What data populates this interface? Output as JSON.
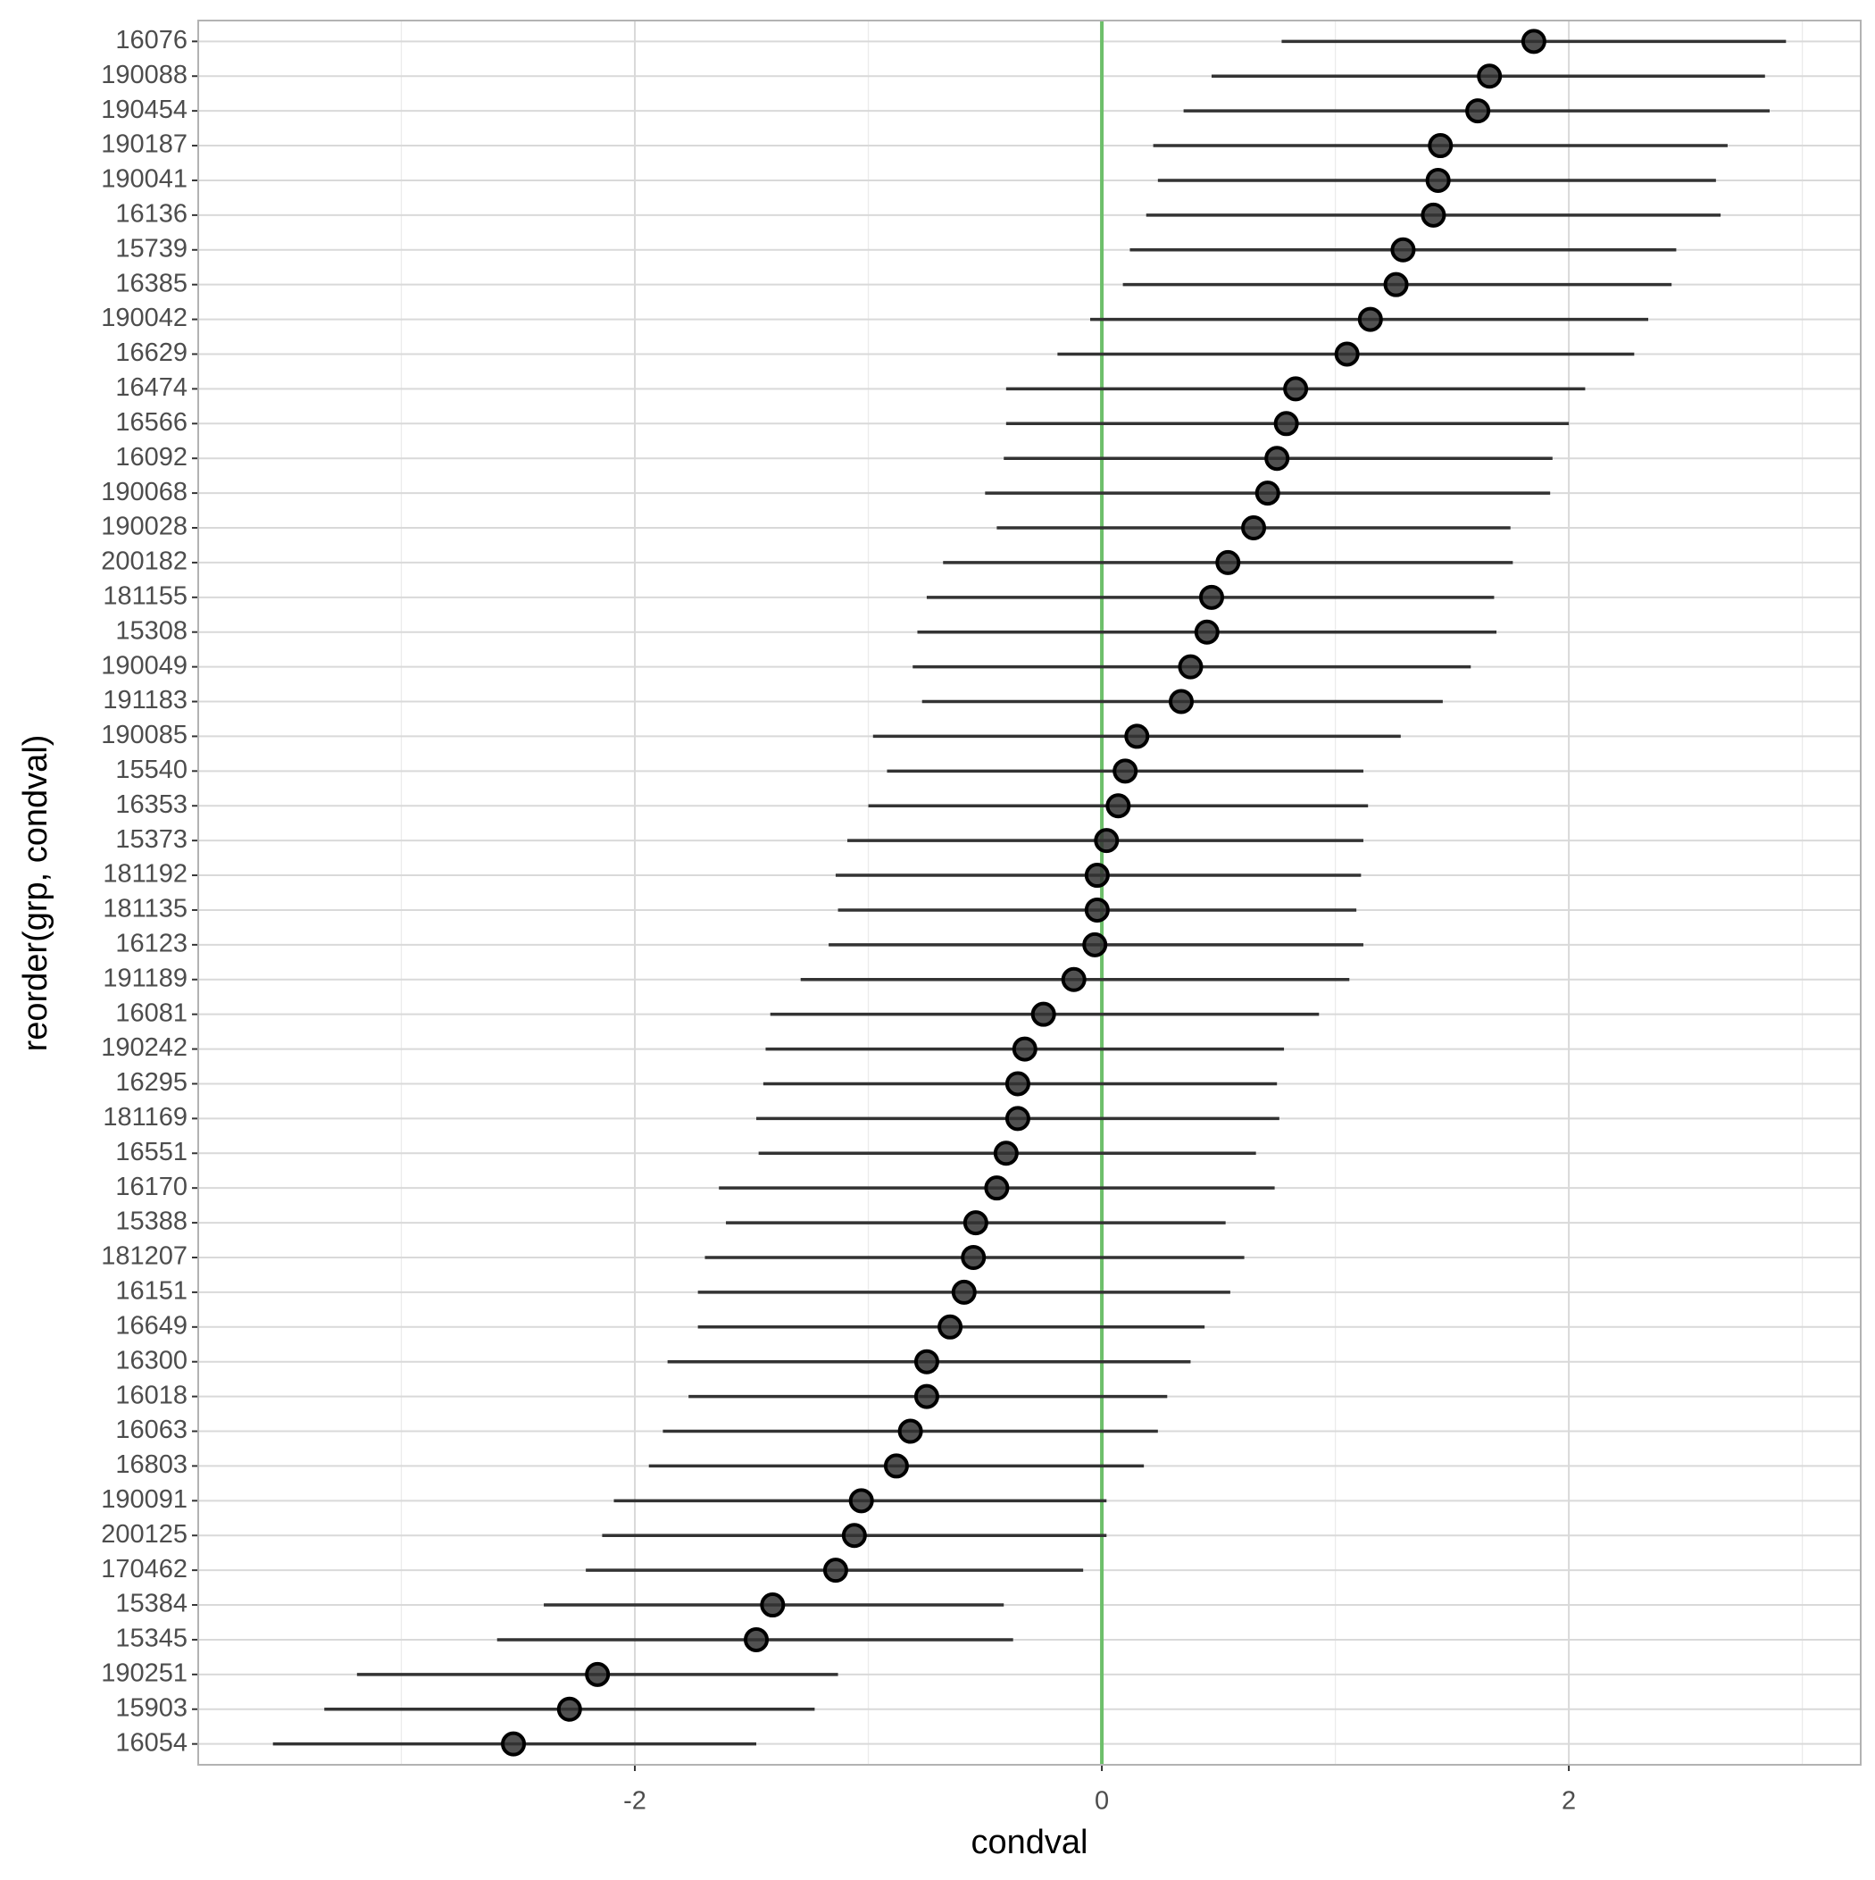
{
  "chart_data": {
    "type": "pointrange",
    "x_label": "condval",
    "y_label": "reorder(grp, condval)",
    "categories": [
      "16076",
      "190088",
      "190454",
      "190187",
      "190041",
      "16136",
      "15739",
      "16385",
      "190042",
      "16629",
      "16474",
      "16566",
      "16092",
      "190068",
      "190028",
      "200182",
      "181155",
      "15308",
      "190049",
      "191183",
      "190085",
      "15540",
      "16353",
      "15373",
      "181192",
      "181135",
      "16123",
      "191189",
      "16081",
      "190242",
      "16295",
      "181169",
      "16551",
      "16170",
      "15388",
      "181207",
      "16151",
      "16649",
      "16300",
      "16018",
      "16063",
      "16803",
      "190091",
      "200125",
      "170462",
      "15384",
      "15345",
      "190251",
      "15903",
      "16054"
    ],
    "values": [
      1.85,
      1.66,
      1.61,
      1.45,
      1.44,
      1.42,
      1.29,
      1.26,
      1.15,
      1.05,
      0.83,
      0.79,
      0.75,
      0.71,
      0.65,
      0.54,
      0.47,
      0.45,
      0.38,
      0.34,
      0.15,
      0.1,
      0.07,
      0.02,
      -0.02,
      -0.02,
      -0.03,
      -0.12,
      -0.25,
      -0.33,
      -0.36,
      -0.36,
      -0.41,
      -0.45,
      -0.54,
      -0.55,
      -0.59,
      -0.65,
      -0.75,
      -0.75,
      -0.82,
      -0.88,
      -1.03,
      -1.06,
      -1.14,
      -1.41,
      -1.48,
      -2.16,
      -2.28,
      -2.52
    ],
    "lower": [
      0.77,
      0.47,
      0.35,
      0.22,
      0.24,
      0.19,
      0.12,
      0.09,
      -0.05,
      -0.19,
      -0.41,
      -0.41,
      -0.42,
      -0.5,
      -0.45,
      -0.68,
      -0.75,
      -0.79,
      -0.81,
      -0.77,
      -0.98,
      -0.92,
      -1.0,
      -1.09,
      -1.14,
      -1.13,
      -1.17,
      -1.29,
      -1.42,
      -1.44,
      -1.45,
      -1.48,
      -1.47,
      -1.64,
      -1.61,
      -1.7,
      -1.73,
      -1.73,
      -1.86,
      -1.77,
      -1.88,
      -1.94,
      -2.09,
      -2.14,
      -2.21,
      -2.39,
      -2.59,
      -3.19,
      -3.33,
      -3.55
    ],
    "upper": [
      2.93,
      2.84,
      2.86,
      2.68,
      2.63,
      2.65,
      2.46,
      2.44,
      2.34,
      2.28,
      2.07,
      2.0,
      1.93,
      1.92,
      1.75,
      1.76,
      1.68,
      1.69,
      1.58,
      1.46,
      1.28,
      1.12,
      1.14,
      1.12,
      1.11,
      1.09,
      1.12,
      1.06,
      0.93,
      0.78,
      0.75,
      0.76,
      0.66,
      0.74,
      0.53,
      0.61,
      0.55,
      0.44,
      0.38,
      0.28,
      0.24,
      0.18,
      0.02,
      0.02,
      -0.08,
      -0.42,
      -0.38,
      -1.13,
      -1.23,
      -1.48
    ],
    "xlim": [
      -3.87,
      3.25
    ],
    "xticks": [
      -2,
      0,
      2
    ],
    "xminor": [
      -3,
      -1,
      1,
      3
    ],
    "ref_line": 0,
    "ref_color": "#6dbf6a",
    "point_color": "#333333",
    "bar_color": "#333333",
    "grid": true
  }
}
